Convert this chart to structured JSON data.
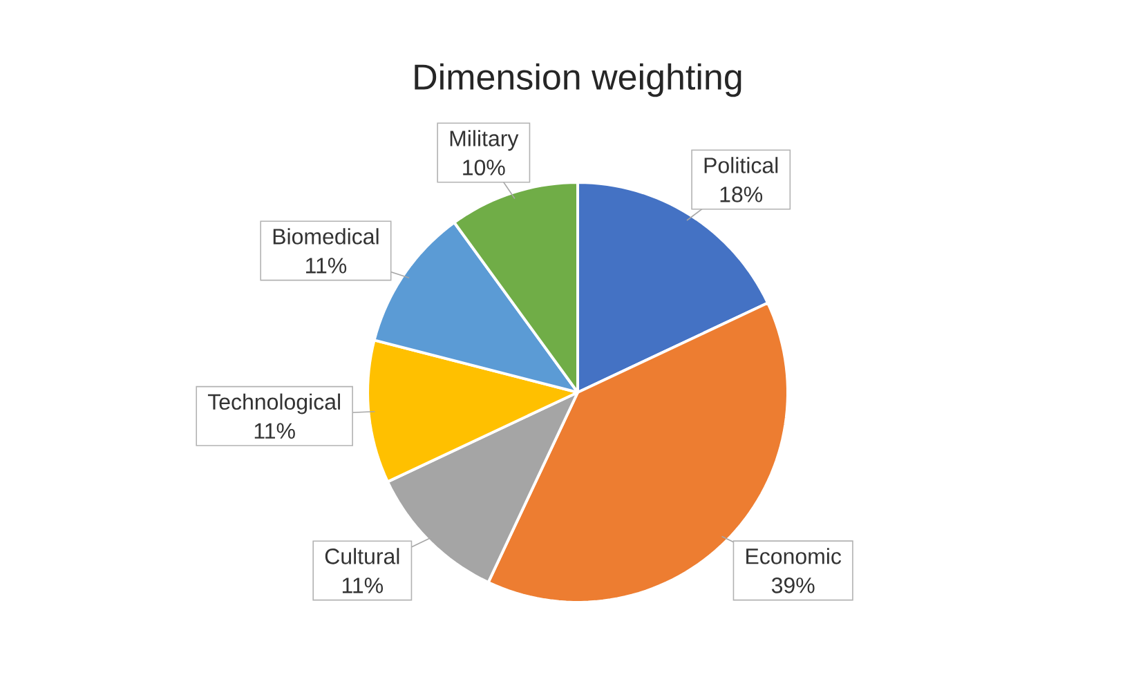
{
  "chart_data": {
    "type": "pie",
    "title": "Dimension weighting",
    "categories": [
      "Political",
      "Economic",
      "Cultural",
      "Technological",
      "Biomedical",
      "Military"
    ],
    "values": [
      18,
      39,
      11,
      11,
      11,
      10
    ],
    "value_labels": [
      "18%",
      "39%",
      "11%",
      "11%",
      "11%",
      "10%"
    ],
    "colors": [
      "#4472c4",
      "#ed7d31",
      "#a5a5a5",
      "#ffc000",
      "#5b9bd5",
      "#70ad47"
    ]
  }
}
